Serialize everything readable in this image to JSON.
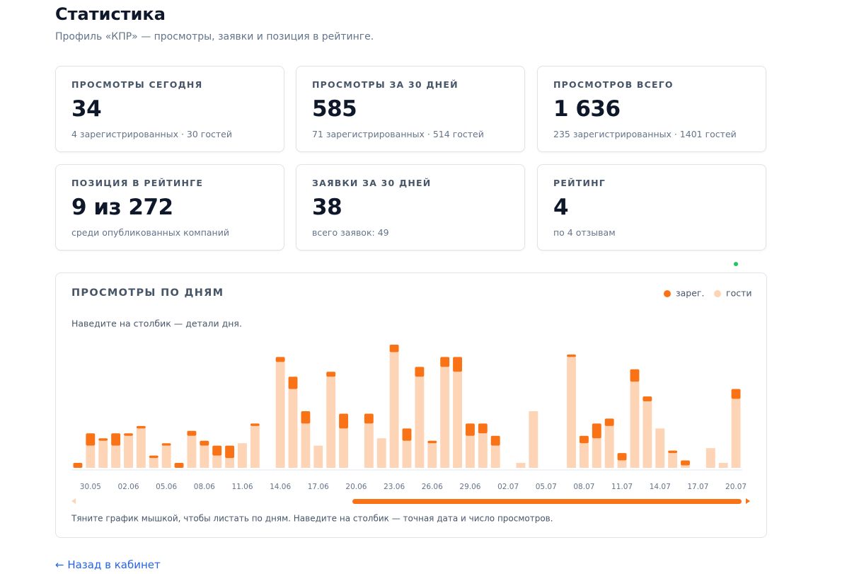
{
  "header": {
    "title": "Статистика",
    "subtitle": "Профиль «КПР» — просмотры, заявки и позиция в рейтинге."
  },
  "cards": [
    {
      "label": "ПРОСМОТРЫ СЕГОДНЯ",
      "value": "34",
      "sub": "4 зарегистрированных · 30 гостей"
    },
    {
      "label": "ПРОСМОТРЫ ЗА 30 ДНЕЙ",
      "value": "585",
      "sub": "71 зарегистрированных · 514 гостей"
    },
    {
      "label": "ПРОСМОТРОВ ВСЕГО",
      "value": "1 636",
      "sub": "235 зарегистрированных · 1401 гостей"
    },
    {
      "label": "ПОЗИЦИЯ В РЕЙТИНГЕ",
      "value": "9 из 272",
      "sub": "среди опубликованных компаний"
    },
    {
      "label": "ЗАЯВКИ ЗА 30 ДНЕЙ",
      "value": "38",
      "sub": "всего заявок: 49"
    },
    {
      "label": "РЕЙТИНГ",
      "value": "4",
      "sub": "по 4 отзывам"
    }
  ],
  "chart_data": {
    "type": "stacked_bar",
    "title": "ПРОСМОТРЫ ПО ДНЯМ",
    "hint": "Наведите на столбик — детали дня.",
    "footnote": "Тяните график мышкой, чтобы листать по дням. Наведите на столбик — точная дата и число просмотров.",
    "categories": [
      null,
      "30.05",
      null,
      null,
      "02.06",
      null,
      null,
      "05.06",
      null,
      null,
      "08.06",
      null,
      null,
      "11.06",
      null,
      null,
      "14.06",
      null,
      null,
      "17.06",
      null,
      null,
      "20.06",
      null,
      null,
      "23.06",
      null,
      null,
      "26.06",
      null,
      null,
      "29.06",
      null,
      null,
      "02.07",
      null,
      null,
      "05.07",
      null,
      null,
      "08.07",
      null,
      null,
      "11.07",
      null,
      null,
      "14.07",
      null,
      null,
      "17.07",
      null,
      null,
      "20.07"
    ],
    "series": [
      {
        "name": "гости",
        "color": "#fdd4b6",
        "values": [
          0,
          9,
          11,
          9,
          13,
          16,
          4,
          9,
          0,
          13,
          9,
          5,
          4,
          10,
          17,
          0,
          43,
          32,
          18,
          9,
          37,
          16,
          0,
          18,
          12,
          47,
          11,
          37,
          10,
          41,
          39,
          13,
          14,
          9,
          0,
          2,
          23,
          0,
          0,
          45,
          10,
          12,
          17,
          3,
          35,
          27,
          16,
          6,
          1,
          0,
          8,
          2,
          28
        ]
      },
      {
        "name": "зарег.",
        "color": "#f97316",
        "values": [
          2,
          5,
          1,
          5,
          1,
          1,
          1,
          1,
          2,
          2,
          2,
          4,
          5,
          0,
          1,
          0,
          2,
          5,
          5,
          0,
          2,
          6,
          0,
          4,
          0,
          3,
          5,
          4,
          1,
          4,
          6,
          5,
          4,
          4,
          0,
          0,
          0,
          0,
          0,
          1,
          3,
          6,
          3,
          3,
          5,
          2,
          0,
          1,
          2,
          0,
          0,
          0,
          4
        ]
      }
    ],
    "ylim": [
      0,
      50
    ]
  },
  "back_link": "← Назад в кабинет"
}
